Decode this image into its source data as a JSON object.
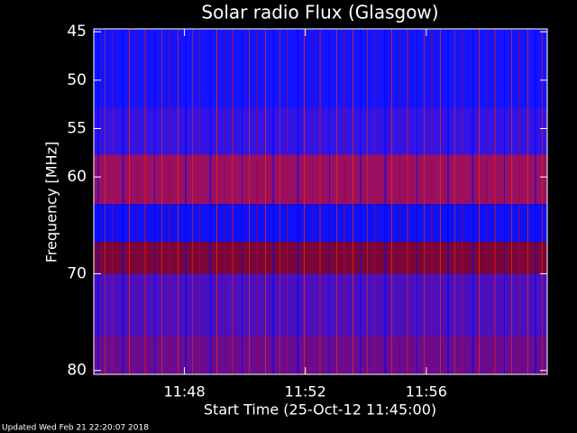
{
  "chart_data": {
    "type": "spectrogram",
    "title": "Solar radio Flux (Glasgow)",
    "x_label": "Start Time (25-Oct-12 11:45:00)",
    "y_label": "Frequency [MHz]",
    "footer": "Updated Wed Feb 21 22:20:07 2018",
    "xlim": [
      45,
      60
    ],
    "xticks": [
      {
        "value": 48,
        "label": "11:48"
      },
      {
        "value": 52,
        "label": "11:52"
      },
      {
        "value": 56,
        "label": "11:56"
      }
    ],
    "ylim": [
      44.7,
      80.4
    ],
    "y_inverted": true,
    "yticks": [
      45,
      50,
      55,
      60,
      70,
      80
    ],
    "bands": [
      {
        "from": 44.7,
        "to": 52.9,
        "color": "#1414ff"
      },
      {
        "from": 52.9,
        "to": 57.7,
        "color": "#3214e6"
      },
      {
        "from": 57.7,
        "to": 62.8,
        "color": "#9a1060"
      },
      {
        "from": 62.8,
        "to": 66.7,
        "color": "#1010f5"
      },
      {
        "from": 66.7,
        "to": 70,
        "color": "#7a0638"
      },
      {
        "from": 70,
        "to": 76.4,
        "color": "#4a10c0"
      },
      {
        "from": 76.4,
        "to": 80.4,
        "color": "#6a0c90"
      }
    ]
  }
}
